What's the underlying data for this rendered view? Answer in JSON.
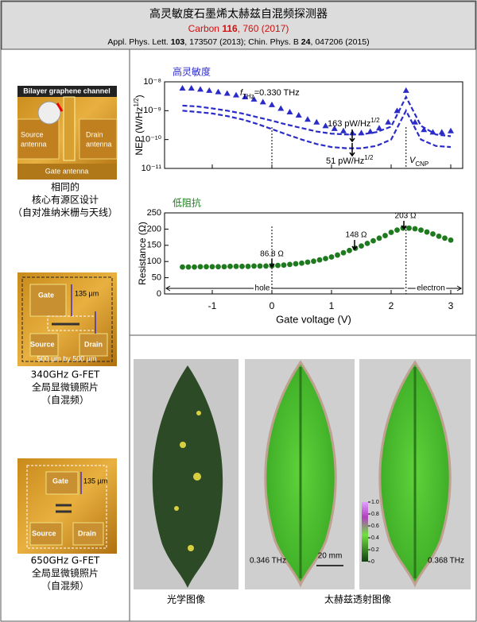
{
  "header": {
    "title": "高灵敏度石墨烯太赫兹自混频探测器",
    "citation": [
      "Carbon ",
      "116",
      ", 760 (2017)"
    ],
    "references": [
      "Appl. Phys. Lett. ",
      "103",
      ", 173507 (2013); Chin. Phys. B ",
      "24",
      ", 047206 (2015)"
    ]
  },
  "left_panel": {
    "device_1": {
      "labels": [
        "Bilayer graphene channel",
        "Source",
        "antenna",
        "Drain",
        "antenna",
        "Gate  antenna"
      ],
      "caption": [
        "相同的",
        "核心有源区设计",
        "（自对准纳米栅与天线）"
      ]
    },
    "device_2": {
      "labels": [
        "Gate",
        "135 µm",
        "Source",
        "Drain",
        "500 µm by 500 µm"
      ],
      "caption": [
        "340GHz G-FET",
        "全局显微镜照片",
        "（自混频）"
      ]
    },
    "device_3": {
      "labels": [
        "Gate",
        "135 µm",
        "Source",
        "Drain"
      ],
      "caption": [
        "650GHz G-FET",
        "全局显微镜照片",
        "（自混频）"
      ]
    }
  },
  "chart_data": [
    {
      "type": "line",
      "title": "高灵敏度",
      "ylabel": [
        "NEP (W/Hz",
        "1/2",
        ")"
      ],
      "log_y": true,
      "xlim": [
        -1.8,
        3.2
      ],
      "xticks": [
        -1,
        0,
        1,
        2,
        3
      ],
      "ylim": [
        1e-11,
        1e-08
      ],
      "yticks": [
        {
          "value": 1e-11,
          "label": "10⁻¹¹"
        },
        {
          "value": 1e-10,
          "label": "10⁻¹⁰"
        },
        {
          "value": 1e-09,
          "label": "10⁻⁹"
        },
        {
          "value": 1e-08,
          "label": "10⁻⁸"
        }
      ],
      "annotations": [
        [
          "f",
          "THz",
          "=0.330 THz"
        ],
        [
          "163 pW/Hz",
          "1/2"
        ],
        [
          "51 pW/Hz",
          "1/2"
        ],
        [
          "V",
          "CNP"
        ]
      ],
      "series": [
        {
          "color": "#2b2bc8",
          "marker": "triangle",
          "x": [
            -1.5,
            -1.35,
            -1.2,
            -1.05,
            -0.9,
            -0.75,
            -0.6,
            -0.45,
            -0.3,
            -0.15,
            0,
            0.15,
            0.3,
            0.45,
            0.6,
            0.75,
            0.9,
            1.05,
            1.2,
            1.35,
            1.5,
            1.65,
            1.8,
            1.95,
            2.1,
            2.25,
            2.4,
            2.55,
            2.7,
            2.85,
            3.0
          ],
          "values": [
            6e-09,
            6e-09,
            5.5e-09,
            5e-09,
            4.5e-09,
            4e-09,
            3.5e-09,
            3e-09,
            2.5e-09,
            2e-09,
            1.6e-09,
            1.2e-09,
            9e-10,
            7e-10,
            5e-10,
            4e-10,
            3e-10,
            2.4e-10,
            2e-10,
            1.7e-10,
            1.7e-10,
            1.9e-10,
            2.5e-10,
            4e-10,
            1e-09,
            5e-09,
            4e-10,
            2.2e-10,
            1.8e-10,
            1.8e-10,
            2e-10
          ]
        },
        {
          "color": "#2b2bc8",
          "line_style": "dashed",
          "x": [
            -1.5,
            -1.25,
            -1,
            -0.75,
            -0.5,
            -0.25,
            0,
            0.25,
            0.5,
            0.75,
            1,
            1.25,
            1.5,
            1.75,
            2,
            2.25,
            2.5,
            2.75,
            3
          ],
          "values": [
            1.5e-09,
            1.4e-09,
            1.2e-09,
            1e-09,
            8e-10,
            6e-10,
            4.5e-10,
            3.3e-10,
            2.5e-10,
            1.9e-10,
            1.6e-10,
            1.5e-10,
            1.5e-10,
            1.8e-10,
            2.8e-10,
            3e-09,
            3e-10,
            1.5e-10,
            1.3e-10
          ]
        },
        {
          "color": "#2b2bc8",
          "line_style": "dashed",
          "x": [
            -1.5,
            -1.25,
            -1,
            -0.75,
            -0.5,
            -0.25,
            0,
            0.25,
            0.5,
            0.75,
            1,
            1.25,
            1.5,
            1.75,
            2,
            2.25,
            2.5,
            2.75,
            3
          ],
          "values": [
            1e-09,
            9e-10,
            8e-10,
            6.5e-10,
            5e-10,
            3.5e-10,
            2.3e-10,
            1.5e-10,
            1e-10,
            7e-11,
            5.5e-11,
            5e-11,
            5e-11,
            6e-11,
            1e-10,
            1e-09,
            1e-10,
            6e-11,
            5.5e-11
          ]
        }
      ]
    },
    {
      "type": "scatter",
      "title": "低阻抗",
      "ylabel": "Resistance (Ω)",
      "xlabel": "Gate voltage (V)",
      "xlim": [
        -1.8,
        3.2
      ],
      "xticks": [
        -1,
        0,
        1,
        2,
        3
      ],
      "ylim": [
        0,
        250
      ],
      "yticks": [
        0,
        50,
        100,
        150,
        200,
        250
      ],
      "annotations": [
        "86.8 Ω",
        "148 Ω",
        "203 Ω",
        "hole",
        "electron"
      ],
      "series": [
        {
          "color": "#1f7a1f",
          "marker": "circle",
          "x": [
            -1.5,
            -1.4,
            -1.3,
            -1.2,
            -1.1,
            -1.0,
            -0.9,
            -0.8,
            -0.7,
            -0.6,
            -0.5,
            -0.4,
            -0.3,
            -0.2,
            -0.1,
            0,
            0.1,
            0.2,
            0.3,
            0.4,
            0.5,
            0.6,
            0.7,
            0.8,
            0.9,
            1.0,
            1.1,
            1.2,
            1.3,
            1.4,
            1.5,
            1.6,
            1.7,
            1.8,
            1.9,
            2.0,
            2.1,
            2.2,
            2.3,
            2.4,
            2.5,
            2.6,
            2.7,
            2.8,
            2.9,
            3.0
          ],
          "values": [
            83,
            83,
            83,
            84,
            84,
            84,
            84,
            84,
            85,
            85,
            85,
            85,
            86,
            86,
            86,
            86.8,
            88,
            89,
            91,
            93,
            95,
            98,
            101,
            105,
            109,
            114,
            120,
            127,
            134,
            141,
            148,
            156,
            164,
            172,
            180,
            190,
            197,
            203,
            203,
            201,
            197,
            191,
            185,
            178,
            172,
            166
          ]
        }
      ]
    }
  ],
  "image_panel": {
    "labels": [
      "0.346 THz",
      "20 mm",
      "0.368 THz"
    ],
    "colorbar_ticks": [
      {
        "value": 1,
        "label": "1.0"
      },
      0.8,
      0.6,
      0.4,
      0.2,
      0
    ],
    "captions": [
      "光学图像",
      "太赫兹透射图像"
    ]
  }
}
